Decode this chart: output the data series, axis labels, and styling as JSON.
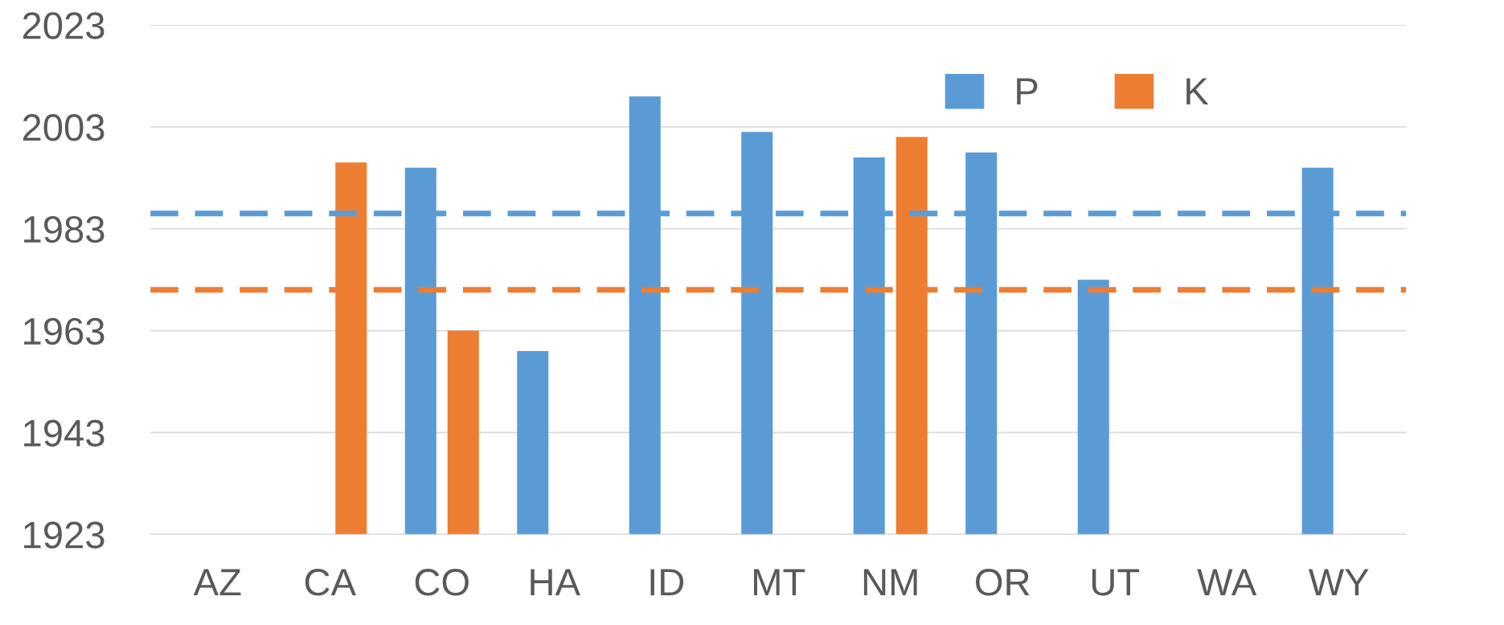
{
  "chart_data": {
    "type": "bar",
    "categories": [
      "AZ",
      "CA",
      "CO",
      "HA",
      "ID",
      "MT",
      "NM",
      "OR",
      "UT",
      "WA",
      "WY"
    ],
    "series": [
      {
        "name": "P",
        "color": "#5b9bd5",
        "values": [
          null,
          null,
          1995,
          1959,
          2009,
          2002,
          1997,
          1998,
          1973,
          null,
          1995
        ]
      },
      {
        "name": "K",
        "color": "#ed7d31",
        "values": [
          null,
          1996,
          1963,
          null,
          null,
          null,
          2001,
          null,
          null,
          null,
          null
        ]
      }
    ],
    "ylim": [
      1923,
      2023
    ],
    "yticks": [
      1923,
      1943,
      1963,
      1983,
      2003,
      2023
    ],
    "grid": "y",
    "legend": "top right",
    "ref_lines": [
      {
        "axis": "y",
        "value": 1986,
        "color": "#5b9bd5",
        "line_style": "dashed"
      },
      {
        "axis": "y",
        "value": 1971,
        "color": "#ed7d31",
        "line_style": "dashed"
      }
    ]
  }
}
